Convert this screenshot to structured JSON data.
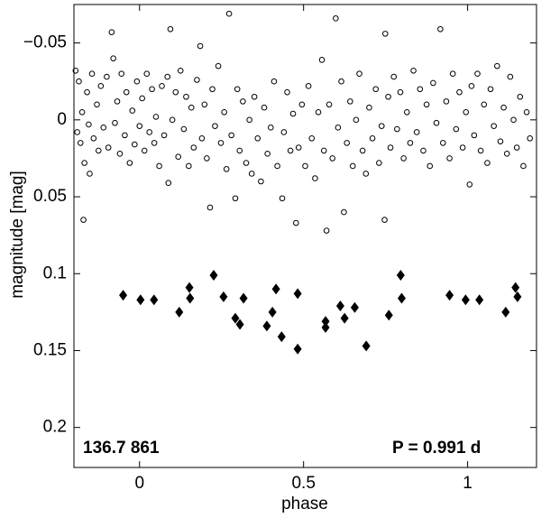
{
  "chart_data": {
    "type": "scatter",
    "xlabel": "phase",
    "ylabel": "magnitude  [mag]",
    "annotations": [
      "136.7 861",
      "P = 0.991 d"
    ],
    "xlim": [
      -0.2,
      1.21
    ],
    "ylim": [
      -0.075,
      0.226
    ],
    "y_inverted": true,
    "xticks": [
      0,
      0.5,
      1
    ],
    "yticks": [
      {
        "value": -0.05,
        "label": "−0.05"
      },
      0,
      0.05,
      0.1,
      0.15,
      0.2
    ],
    "grid": false,
    "series": [
      {
        "marker": "circle-open",
        "color": "#000000",
        "x": [
          -0.195,
          -0.19,
          -0.185,
          -0.18,
          -0.175,
          -0.171,
          -0.168,
          -0.16,
          -0.155,
          -0.152,
          -0.145,
          -0.14,
          -0.13,
          -0.125,
          -0.118,
          -0.11,
          -0.1,
          -0.095,
          -0.085,
          -0.08,
          -0.075,
          -0.068,
          -0.06,
          -0.055,
          -0.045,
          -0.04,
          -0.03,
          -0.022,
          -0.015,
          -0.008,
          0.0,
          0.008,
          0.015,
          0.022,
          0.03,
          0.038,
          0.045,
          0.05,
          0.06,
          0.068,
          0.075,
          0.085,
          0.088,
          0.094,
          0.1,
          0.11,
          0.118,
          0.125,
          0.135,
          0.142,
          0.15,
          0.158,
          0.165,
          0.175,
          0.185,
          0.19,
          0.198,
          0.205,
          0.215,
          0.222,
          0.23,
          0.24,
          0.248,
          0.258,
          0.265,
          0.273,
          0.28,
          0.292,
          0.298,
          0.305,
          0.315,
          0.325,
          0.335,
          0.342,
          0.35,
          0.36,
          0.37,
          0.38,
          0.39,
          0.4,
          0.41,
          0.42,
          0.435,
          0.44,
          0.45,
          0.46,
          0.468,
          0.477,
          0.485,
          0.495,
          0.505,
          0.515,
          0.525,
          0.535,
          0.545,
          0.556,
          0.562,
          0.57,
          0.578,
          0.588,
          0.598,
          0.605,
          0.615,
          0.623,
          0.632,
          0.642,
          0.65,
          0.66,
          0.67,
          0.68,
          0.69,
          0.7,
          0.71,
          0.72,
          0.73,
          0.738,
          0.747,
          0.749,
          0.758,
          0.765,
          0.775,
          0.785,
          0.795,
          0.805,
          0.815,
          0.825,
          0.835,
          0.845,
          0.855,
          0.865,
          0.875,
          0.885,
          0.895,
          0.905,
          0.917,
          0.925,
          0.935,
          0.945,
          0.955,
          0.965,
          0.975,
          0.985,
          0.995,
          1.006,
          1.012,
          1.02,
          1.03,
          1.04,
          1.05,
          1.06,
          1.07,
          1.08,
          1.09,
          1.1,
          1.11,
          1.12,
          1.13,
          1.14,
          1.15,
          1.16,
          1.17,
          1.18,
          1.19
        ],
        "values": [
          -0.032,
          0.008,
          -0.025,
          0.015,
          -0.005,
          0.065,
          0.028,
          -0.018,
          0.003,
          0.035,
          -0.03,
          0.012,
          -0.01,
          0.02,
          -0.022,
          0.005,
          -0.028,
          0.018,
          -0.057,
          -0.04,
          0.002,
          -0.012,
          0.022,
          -0.03,
          0.01,
          -0.018,
          0.028,
          -0.006,
          0.016,
          -0.025,
          0.004,
          -0.014,
          0.02,
          -0.03,
          0.008,
          -0.02,
          0.015,
          -0.002,
          0.03,
          -0.022,
          0.01,
          -0.028,
          0.041,
          -0.059,
          0.0,
          -0.018,
          0.024,
          -0.032,
          0.006,
          -0.015,
          0.03,
          -0.008,
          0.018,
          -0.026,
          -0.048,
          0.012,
          -0.01,
          0.025,
          0.057,
          -0.02,
          0.004,
          -0.035,
          0.015,
          -0.005,
          0.032,
          -0.069,
          0.01,
          0.051,
          -0.02,
          0.02,
          -0.012,
          0.028,
          0.0,
          0.035,
          -0.015,
          0.012,
          0.04,
          -0.008,
          0.022,
          0.005,
          -0.025,
          0.03,
          0.051,
          0.008,
          -0.018,
          0.02,
          -0.004,
          0.067,
          0.018,
          -0.01,
          0.03,
          -0.022,
          0.012,
          0.038,
          -0.005,
          -0.039,
          0.02,
          0.072,
          -0.01,
          0.025,
          -0.066,
          0.005,
          -0.025,
          0.06,
          0.015,
          -0.012,
          0.03,
          0.0,
          -0.03,
          0.02,
          0.035,
          -0.008,
          0.012,
          -0.02,
          0.028,
          0.004,
          0.065,
          -0.056,
          -0.015,
          0.018,
          -0.028,
          0.006,
          -0.018,
          0.025,
          -0.005,
          0.015,
          -0.032,
          0.008,
          -0.02,
          0.02,
          -0.01,
          0.03,
          -0.024,
          0.002,
          -0.059,
          0.015,
          -0.012,
          0.025,
          -0.03,
          0.006,
          -0.018,
          0.018,
          -0.005,
          0.042,
          -0.022,
          0.01,
          -0.03,
          0.02,
          -0.01,
          0.028,
          -0.02,
          0.004,
          -0.035,
          0.014,
          -0.008,
          0.022,
          -0.028,
          0.0,
          0.018,
          -0.015,
          0.03,
          -0.005,
          0.012
        ]
      },
      {
        "marker": "diamond",
        "color": "#000000",
        "x": [
          -0.05,
          0.003,
          0.044,
          0.121,
          0.152,
          0.154,
          0.226,
          0.256,
          0.292,
          0.306,
          0.317,
          0.388,
          0.416,
          0.405,
          0.433,
          0.482,
          0.482,
          0.567,
          0.567,
          0.612,
          0.625,
          0.656,
          0.691,
          0.76,
          0.796,
          0.799,
          0.945,
          0.994,
          1.036,
          1.116,
          1.146,
          1.152
        ],
        "values": [
          0.114,
          0.117,
          0.117,
          0.125,
          0.109,
          0.116,
          0.101,
          0.115,
          0.129,
          0.133,
          0.116,
          0.134,
          0.11,
          0.125,
          0.141,
          0.113,
          0.149,
          0.131,
          0.135,
          0.121,
          0.129,
          0.122,
          0.147,
          0.127,
          0.101,
          0.116,
          0.114,
          0.117,
          0.117,
          0.125,
          0.109,
          0.115
        ]
      }
    ]
  }
}
